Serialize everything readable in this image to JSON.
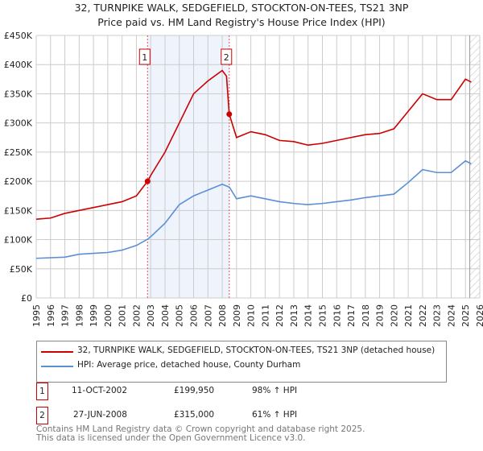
{
  "chart_data": {
    "type": "line",
    "title": "32, TURNPIKE WALK, SEDGEFIELD, STOCKTON-ON-TEES, TS21 3NP",
    "subtitle": "Price paid vs. HM Land Registry's House Price Index (HPI)",
    "xlim": [
      1995,
      2026
    ],
    "ylim": [
      0,
      450000
    ],
    "y_ticks": [
      {
        "v": 0,
        "l": "£0"
      },
      {
        "v": 50000,
        "l": "£50K"
      },
      {
        "v": 100000,
        "l": "£100K"
      },
      {
        "v": 150000,
        "l": "£150K"
      },
      {
        "v": 200000,
        "l": "£200K"
      },
      {
        "v": 250000,
        "l": "£250K"
      },
      {
        "v": 300000,
        "l": "£300K"
      },
      {
        "v": 350000,
        "l": "£350K"
      },
      {
        "v": 400000,
        "l": "£400K"
      },
      {
        "v": 450000,
        "l": "£450K"
      }
    ],
    "x_ticks": [
      "1995",
      "1996",
      "1997",
      "1998",
      "1999",
      "2000",
      "2001",
      "2002",
      "2003",
      "2004",
      "2005",
      "2006",
      "2007",
      "2008",
      "2009",
      "2010",
      "2011",
      "2012",
      "2013",
      "2014",
      "2015",
      "2016",
      "2017",
      "2018",
      "2019",
      "2020",
      "2021",
      "2022",
      "2023",
      "2024",
      "2025",
      "2026"
    ],
    "grid": true,
    "shaded_range": [
      2002.78,
      2008.49
    ],
    "forecast_hatch_from": 2025.3,
    "series": [
      {
        "name": "32, TURNPIKE WALK, SEDGEFIELD, STOCKTON-ON-TEES, TS21 3NP (detached house)",
        "color": "#cc0000",
        "x": [
          1995,
          1996,
          1997,
          1998,
          1999,
          2000,
          2001,
          2002,
          2002.78,
          2003,
          2004,
          2005,
          2006,
          2007,
          2008,
          2008.3,
          2008.49,
          2009,
          2010,
          2011,
          2012,
          2013,
          2014,
          2015,
          2016,
          2017,
          2018,
          2019,
          2020,
          2021,
          2022,
          2023,
          2024,
          2025,
          2025.4
        ],
        "y": [
          135000,
          137000,
          145000,
          150000,
          155000,
          160000,
          165000,
          175000,
          199950,
          210000,
          250000,
          300000,
          350000,
          372000,
          390000,
          380000,
          315000,
          275000,
          285000,
          280000,
          270000,
          268000,
          262000,
          265000,
          270000,
          275000,
          280000,
          282000,
          290000,
          320000,
          350000,
          340000,
          340000,
          375000,
          370000
        ]
      },
      {
        "name": "HPI: Average price, detached house, County Durham",
        "color": "#5b8fd6",
        "x": [
          1995,
          1997,
          1998,
          2000,
          2001,
          2002,
          2002.8,
          2003,
          2004,
          2005,
          2006,
          2007,
          2008,
          2008.5,
          2009,
          2010,
          2011,
          2012,
          2013,
          2014,
          2015,
          2016,
          2017,
          2018,
          2019,
          2020,
          2021,
          2022,
          2023,
          2024,
          2025,
          2025.4
        ],
        "y": [
          68000,
          70000,
          75000,
          78000,
          82000,
          90000,
          101000,
          105000,
          128000,
          160000,
          175000,
          185000,
          195000,
          190000,
          170000,
          175000,
          170000,
          165000,
          162000,
          160000,
          162000,
          165000,
          168000,
          172000,
          175000,
          178000,
          198000,
          220000,
          215000,
          215000,
          235000,
          230000
        ]
      }
    ],
    "annotations": [
      {
        "label": "1",
        "x": 2002.78,
        "y": 199950
      },
      {
        "label": "2",
        "x": 2008.49,
        "y": 315000
      }
    ]
  },
  "transactions": [
    {
      "num": "1",
      "date": "11-OCT-2002",
      "price": "£199,950",
      "hpi": "98% ↑ HPI"
    },
    {
      "num": "2",
      "date": "27-JUN-2008",
      "price": "£315,000",
      "hpi": "61% ↑ HPI"
    }
  ],
  "footer": {
    "line1": "Contains HM Land Registry data © Crown copyright and database right 2025.",
    "line2": "This data is licensed under the Open Government Licence v3.0."
  }
}
